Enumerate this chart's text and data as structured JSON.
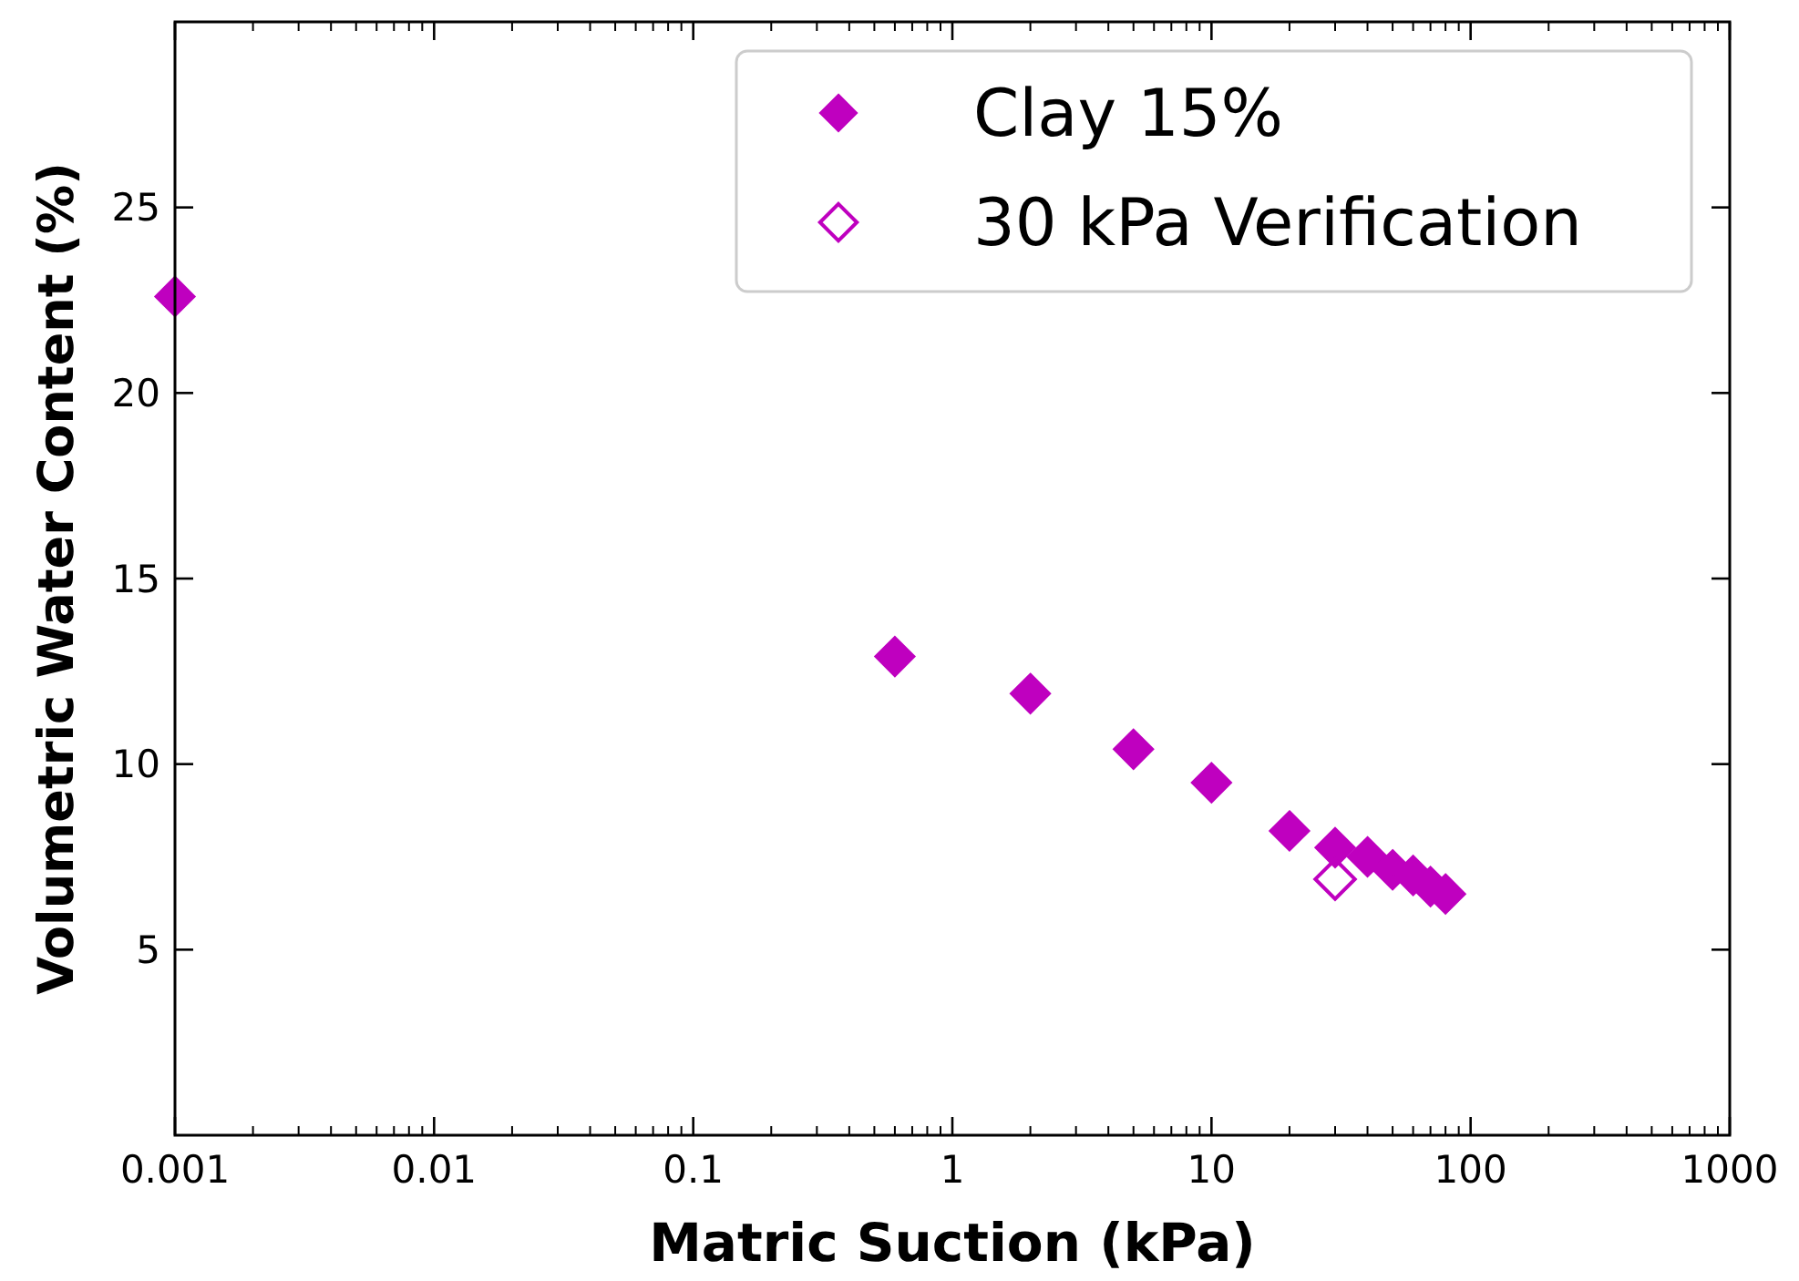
{
  "chart_data": {
    "type": "scatter",
    "xlabel": "Matric Suction (kPa)",
    "ylabel": "Volumetric Water Content (%)",
    "log": "x",
    "xlim": [
      0.001,
      1000
    ],
    "xticks": [
      0.001,
      0.01,
      0.1,
      1,
      10,
      100,
      1000
    ],
    "ylim": [
      0,
      30
    ],
    "yticks": [
      5,
      10,
      15,
      20,
      25
    ],
    "grid": false,
    "legend": "top right",
    "marker": "diamond",
    "series": [
      {
        "name": "Clay 15%",
        "color": "#bf00bf",
        "x": [
          0.001,
          0.6,
          2,
          5,
          10,
          20,
          30,
          40,
          50,
          60,
          70,
          80
        ],
        "values": [
          22.6,
          12.9,
          11.9,
          10.4,
          9.5,
          8.2,
          7.75,
          7.5,
          7.15,
          7.0,
          6.7,
          6.5
        ]
      },
      {
        "name": "30 kPa Verification",
        "color": "#bf00bf",
        "x": [
          30
        ],
        "values": [
          6.9
        ]
      }
    ]
  }
}
